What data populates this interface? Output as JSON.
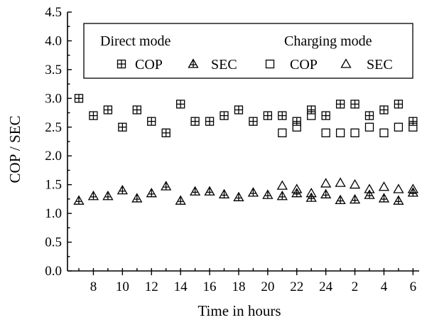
{
  "chart_data": {
    "type": "scatter",
    "xlabel": "Time in hours",
    "ylabel": "COP / SEC",
    "ylim": [
      0,
      4.5
    ],
    "yticks": [
      "0.0",
      "0.5",
      "1.0",
      "1.5",
      "2.0",
      "2.5",
      "3.0",
      "3.5",
      "4.0",
      "4.5"
    ],
    "xtick_labels": [
      "8",
      "10",
      "12",
      "14",
      "16",
      "18",
      "20",
      "22",
      "24",
      "2",
      "4",
      "6"
    ],
    "x_points": [
      "7",
      "8",
      "9",
      "10",
      "11",
      "12",
      "13",
      "14",
      "15",
      "16",
      "17",
      "18",
      "19",
      "20",
      "21",
      "22",
      "23",
      "24",
      "1",
      "2",
      "3",
      "4",
      "5",
      "6"
    ],
    "grid": false,
    "legend_position": "top",
    "legend": {
      "group_direct": "Direct mode",
      "group_charging": "Charging mode",
      "cop_label": "COP",
      "sec_label": "SEC"
    },
    "series": [
      {
        "mode": "Direct mode",
        "name": "COP",
        "marker": "square-plus",
        "x": [
          "7",
          "8",
          "9",
          "10",
          "11",
          "12",
          "13",
          "14",
          "15",
          "16",
          "17",
          "18",
          "19",
          "20",
          "21",
          "22",
          "23",
          "24",
          "1",
          "2",
          "3",
          "4",
          "5",
          "6"
        ],
        "values": [
          3.0,
          2.7,
          2.8,
          2.5,
          2.8,
          2.6,
          2.4,
          2.9,
          2.6,
          2.6,
          2.7,
          2.8,
          2.6,
          2.7,
          2.7,
          2.6,
          2.8,
          2.7,
          2.9,
          2.9,
          2.7,
          2.8,
          2.9,
          2.6
        ]
      },
      {
        "mode": "Direct mode",
        "name": "SEC",
        "marker": "triangle-plus",
        "x": [
          "7",
          "8",
          "9",
          "10",
          "11",
          "12",
          "13",
          "14",
          "15",
          "16",
          "17",
          "18",
          "19",
          "20",
          "21",
          "22",
          "23",
          "24",
          "1",
          "2",
          "3",
          "4",
          "5",
          "6"
        ],
        "values": [
          1.22,
          1.3,
          1.3,
          1.4,
          1.26,
          1.35,
          1.47,
          1.22,
          1.38,
          1.38,
          1.33,
          1.28,
          1.36,
          1.32,
          1.3,
          1.35,
          1.27,
          1.33,
          1.23,
          1.24,
          1.32,
          1.26,
          1.22,
          1.36
        ]
      },
      {
        "mode": "Charging mode",
        "name": "COP",
        "marker": "square",
        "x": [
          "21",
          "22",
          "23",
          "24",
          "1",
          "2",
          "3",
          "4",
          "5",
          "6"
        ],
        "values": [
          2.4,
          2.5,
          2.7,
          2.4,
          2.4,
          2.4,
          2.5,
          2.4,
          2.5,
          2.5
        ]
      },
      {
        "mode": "Charging mode",
        "name": "SEC",
        "marker": "triangle",
        "x": [
          "21",
          "22",
          "23",
          "24",
          "1",
          "2",
          "3",
          "4",
          "5",
          "6"
        ],
        "values": [
          1.48,
          1.42,
          1.35,
          1.52,
          1.53,
          1.5,
          1.42,
          1.46,
          1.42,
          1.42
        ]
      }
    ]
  }
}
